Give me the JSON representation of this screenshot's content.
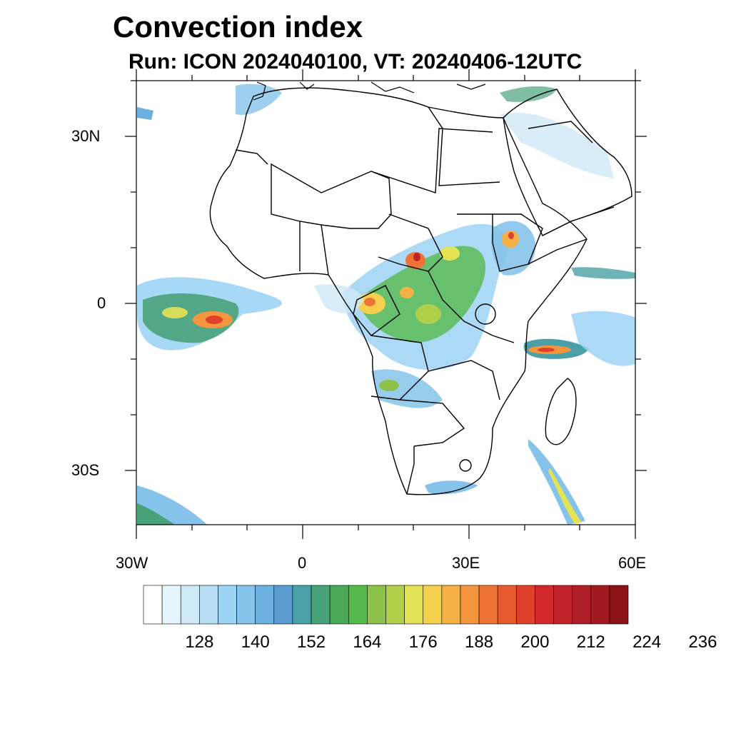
{
  "title": "Convection index",
  "subtitle": "Run: ICON 2024040100,  VT: 20240406-12UTC",
  "axes": {
    "lat_labels": [
      "30N",
      "0",
      "30S"
    ],
    "lon_labels": [
      "30W",
      "0",
      "30E",
      "60E"
    ]
  },
  "colorbar": {
    "colors": [
      "#ffffff",
      "#e6f4fb",
      "#cfe9f7",
      "#b8def5",
      "#9dd4f4",
      "#86c3ea",
      "#6cb0e0",
      "#5a9bd2",
      "#4aa0a6",
      "#49a37a",
      "#4aaa55",
      "#55b94b",
      "#8cc24a",
      "#b0cf4a",
      "#e4e255",
      "#f6d04d",
      "#f5b145",
      "#f49640",
      "#ee7435",
      "#e75a2d",
      "#df402b",
      "#d2282b",
      "#c0232a",
      "#ad1e27",
      "#9f1a1f",
      "#8b1216"
    ],
    "tick_labels": [
      "128",
      "140",
      "152",
      "164",
      "176",
      "188",
      "200",
      "212",
      "224",
      "236"
    ]
  }
}
